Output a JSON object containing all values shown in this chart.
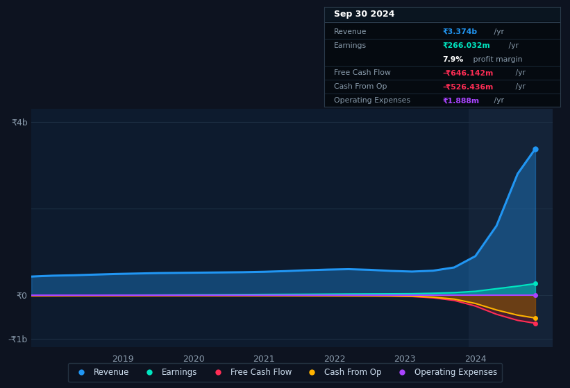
{
  "bg_color": "#0d1320",
  "plot_bg_color": "#0d1b2e",
  "highlight_bg_color": "#142338",
  "grid_color": "#1e3045",
  "fig_size": [
    8.21,
    5.6
  ],
  "dpi": 100,
  "x_years": [
    2017.7,
    2018.0,
    2018.3,
    2018.6,
    2018.9,
    2019.2,
    2019.5,
    2019.8,
    2020.1,
    2020.4,
    2020.7,
    2021.0,
    2021.3,
    2021.6,
    2021.9,
    2022.2,
    2022.5,
    2022.8,
    2023.1,
    2023.4,
    2023.7,
    2024.0,
    2024.3,
    2024.6,
    2024.85
  ],
  "revenue": [
    430,
    450,
    460,
    475,
    490,
    500,
    510,
    515,
    520,
    525,
    530,
    540,
    555,
    575,
    590,
    600,
    585,
    560,
    545,
    565,
    640,
    900,
    1600,
    2800,
    3374
  ],
  "earnings": [
    -5,
    -3,
    -2,
    0,
    2,
    3,
    5,
    8,
    10,
    12,
    15,
    18,
    20,
    22,
    25,
    28,
    30,
    32,
    35,
    45,
    60,
    90,
    150,
    210,
    266
  ],
  "free_cash_flow": [
    -15,
    -14,
    -13,
    -12,
    -12,
    -11,
    -10,
    -10,
    -10,
    -11,
    -12,
    -13,
    -14,
    -15,
    -16,
    -17,
    -18,
    -20,
    -30,
    -60,
    -120,
    -250,
    -440,
    -580,
    -646
  ],
  "cash_from_op": [
    -10,
    -10,
    -9,
    -9,
    -8,
    -8,
    -7,
    -7,
    -7,
    -8,
    -8,
    -9,
    -10,
    -11,
    -12,
    -13,
    -14,
    -16,
    -22,
    -45,
    -90,
    -190,
    -340,
    -460,
    -526
  ],
  "operating_expenses": [
    1.0,
    1.0,
    1.0,
    1.0,
    1.1,
    1.1,
    1.1,
    1.2,
    1.2,
    1.2,
    1.3,
    1.3,
    1.3,
    1.4,
    1.4,
    1.4,
    1.5,
    1.5,
    1.6,
    1.6,
    1.7,
    1.7,
    1.8,
    1.85,
    1.888
  ],
  "revenue_color": "#2196f3",
  "earnings_color": "#00e5c0",
  "free_cash_flow_color": "#ff2d55",
  "cash_from_op_color": "#ffb300",
  "operating_expenses_color": "#aa44ff",
  "highlight_start_x": 2023.9,
  "ylim_min": -1200,
  "ylim_max": 4300,
  "ytick_vals": [
    4000,
    2000,
    0,
    -1000
  ],
  "ytick_labels": [
    "₹4b",
    "",
    "₹0",
    "-₹1b"
  ],
  "xtick_years": [
    2019,
    2020,
    2021,
    2022,
    2023,
    2024
  ],
  "legend_items": [
    "Revenue",
    "Earnings",
    "Free Cash Flow",
    "Cash From Op",
    "Operating Expenses"
  ],
  "legend_colors": [
    "#2196f3",
    "#00e5c0",
    "#ff2d55",
    "#ffb300",
    "#aa44ff"
  ],
  "margin_label_color": "#8899aa",
  "info_box": {
    "title": "Sep 30 2024",
    "rows": [
      {
        "label": "Revenue",
        "val1": "₹3.374b",
        "val2": " /yr",
        "val1_color": "#2196f3",
        "has_divider": true
      },
      {
        "label": "Earnings",
        "val1": "₹266.032m",
        "val2": " /yr",
        "val1_color": "#00e5c0",
        "has_divider": false
      },
      {
        "label": "",
        "val1": "7.9%",
        "val2": " profit margin",
        "val1_color": "#ffffff",
        "has_divider": true
      },
      {
        "label": "Free Cash Flow",
        "val1": "-₹646.142m",
        "val2": " /yr",
        "val1_color": "#ff2d55",
        "has_divider": true
      },
      {
        "label": "Cash From Op",
        "val1": "-₹526.436m",
        "val2": " /yr",
        "val1_color": "#ff2d55",
        "has_divider": true
      },
      {
        "label": "Operating Expenses",
        "val1": "₹1.888m",
        "val2": " /yr",
        "val1_color": "#aa44ff",
        "has_divider": false
      }
    ]
  }
}
